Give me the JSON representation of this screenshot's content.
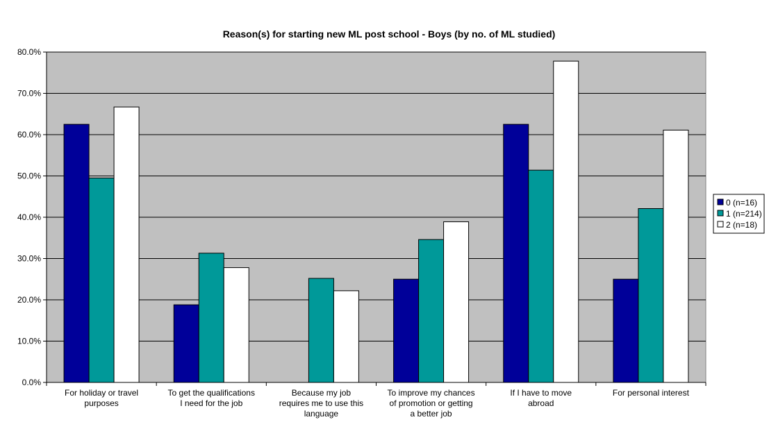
{
  "chart_data": {
    "type": "bar",
    "title": "Reason(s) for starting new ML post school - Boys (by no. of ML studied)",
    "categories": [
      [
        "For holiday or travel",
        "purposes"
      ],
      [
        "To get the qualifications",
        "I need for the job"
      ],
      [
        "Because my job",
        "requires me to use this",
        "language"
      ],
      [
        "To improve my chances",
        "of promotion or getting",
        "a better job"
      ],
      [
        "If I have to move",
        "abroad"
      ],
      [
        "For personal interest"
      ]
    ],
    "series": [
      {
        "name": "0 (n=16)",
        "color": "#000099",
        "values": [
          62.5,
          18.8,
          0.0,
          25.0,
          62.5,
          25.0
        ]
      },
      {
        "name": "1 (n=214)",
        "color": "#009999",
        "values": [
          49.5,
          31.3,
          25.2,
          34.6,
          51.4,
          42.1
        ]
      },
      {
        "name": "2 (n=18)",
        "color": "#ffffff",
        "values": [
          66.7,
          27.8,
          22.2,
          38.9,
          77.8,
          61.1
        ]
      }
    ],
    "yticks": [
      "0.0%",
      "10.0%",
      "20.0%",
      "30.0%",
      "40.0%",
      "50.0%",
      "60.0%",
      "70.0%",
      "80.0%"
    ],
    "ylim": [
      0,
      80
    ],
    "grid": true,
    "plot_background": "#c0c0c0",
    "legend_position": "right"
  }
}
